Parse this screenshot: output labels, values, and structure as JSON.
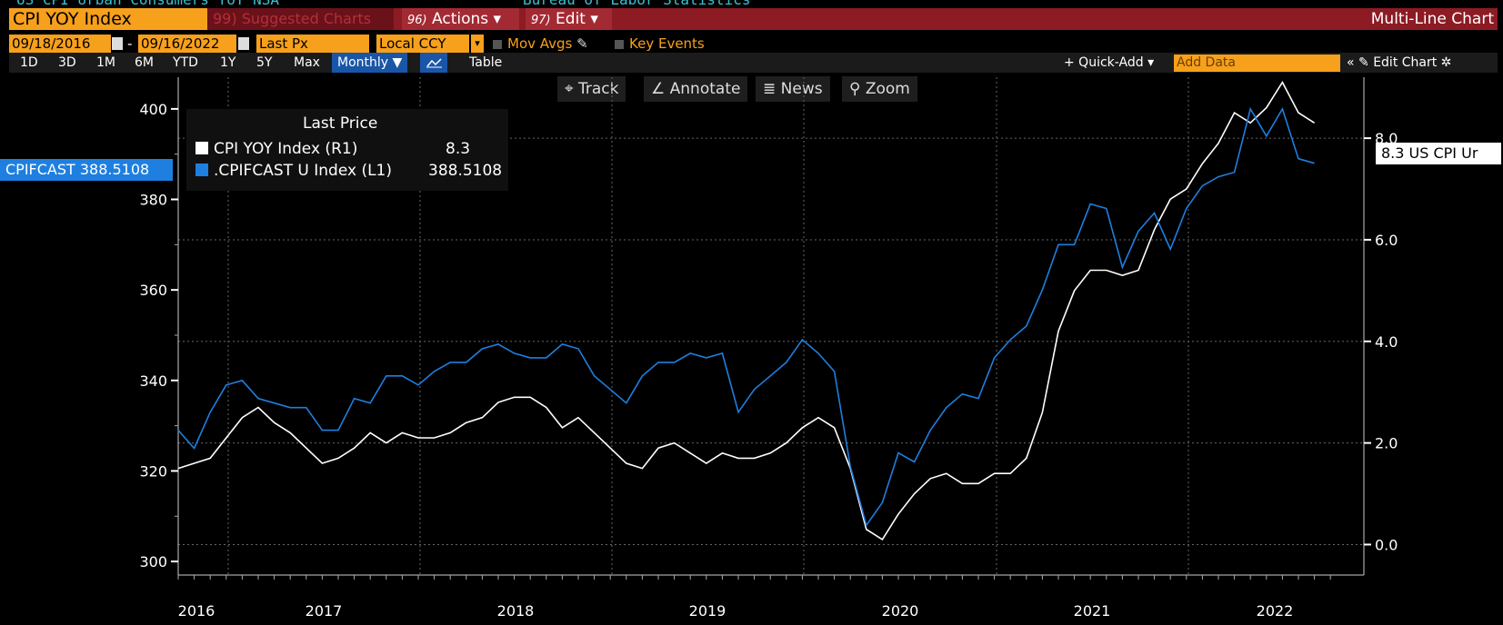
{
  "header": {
    "top_left_partial": "US CPI Urban Consumers YoY NSA",
    "top_right_partial": "Bureau of Labor Statistics",
    "ticker": "CPI YOY Index",
    "suggested": "99) Suggested Charts",
    "actions_num": "96)",
    "actions_label": "Actions ▾",
    "edit_num": "97)",
    "edit_label": "Edit ▾",
    "chart_type": "Multi-Line Chart"
  },
  "controls": {
    "start_date": "09/18/2016",
    "end_date": "09/16/2022",
    "dash": "-",
    "field": "Last Px",
    "currency": "Local CCY",
    "mov_avgs": "Mov Avgs",
    "key_events": "Key Events"
  },
  "ranges": {
    "items": [
      "1D",
      "3D",
      "1M",
      "6M",
      "YTD",
      "1Y",
      "5Y",
      "Max"
    ],
    "frequency": "Monthly ▼",
    "table": "Table",
    "quick_add": "+ Quick-Add ▾",
    "add_data_placeholder": "Add Data",
    "edit_chart": "« ✎ Edit Chart ✲"
  },
  "toolbar": {
    "track": "Track",
    "annotate": "Annotate",
    "news": "News",
    "zoom": "Zoom"
  },
  "legend": {
    "header": "Last Price",
    "rows": [
      {
        "label": "CPI YOY Index  (R1)",
        "value": "8.3",
        "color": "#ffffff"
      },
      {
        "label": ".CPIFCAST U Index  (L1)",
        "value": "388.5108",
        "color": "#1e7fe0"
      }
    ]
  },
  "tags": {
    "left": "CPIFCAST 388.5108",
    "right": "8.3 US CPI Ur"
  },
  "chart_data": {
    "type": "line",
    "x_labels": [
      "2016",
      "2017",
      "2018",
      "2019",
      "2020",
      "2021",
      "2022"
    ],
    "left_axis": {
      "ticks": [
        300,
        320,
        340,
        360,
        380,
        400
      ],
      "range": [
        297,
        407
      ]
    },
    "right_axis": {
      "ticks": [
        "0.0",
        "2.0",
        "4.0",
        "6.0",
        "8.0"
      ],
      "range": [
        -0.6,
        9.2
      ]
    },
    "grid": true,
    "series": [
      {
        "name": "CPI YOY Index (R1)",
        "axis": "right",
        "color": "#ffffff",
        "values": [
          1.5,
          1.6,
          1.7,
          2.1,
          2.5,
          2.7,
          2.4,
          2.2,
          1.9,
          1.6,
          1.7,
          1.9,
          2.2,
          2.0,
          2.2,
          2.1,
          2.1,
          2.2,
          2.4,
          2.5,
          2.8,
          2.9,
          2.9,
          2.7,
          2.3,
          2.5,
          2.2,
          1.9,
          1.6,
          1.5,
          1.9,
          2.0,
          1.8,
          1.6,
          1.8,
          1.7,
          1.7,
          1.8,
          2.0,
          2.3,
          2.5,
          2.3,
          1.5,
          0.3,
          0.1,
          0.6,
          1.0,
          1.3,
          1.4,
          1.2,
          1.2,
          1.4,
          1.4,
          1.7,
          2.6,
          4.2,
          5.0,
          5.4,
          5.4,
          5.3,
          5.4,
          6.2,
          6.8,
          7.0,
          7.5,
          7.9,
          8.5,
          8.3,
          8.6,
          9.1,
          8.5,
          8.3
        ]
      },
      {
        "name": ".CPIFCAST U Index (L1)",
        "axis": "left",
        "color": "#1e7fe0",
        "values": [
          329,
          325,
          333,
          339,
          340,
          336,
          335,
          334,
          334,
          329,
          329,
          336,
          335,
          341,
          341,
          339,
          342,
          344,
          344,
          347,
          348,
          346,
          345,
          345,
          348,
          347,
          341,
          338,
          335,
          341,
          344,
          344,
          346,
          345,
          346,
          333,
          338,
          341,
          344,
          349,
          346,
          342,
          321,
          308,
          313,
          324,
          322,
          329,
          334,
          337,
          336,
          345,
          349,
          352,
          360,
          370,
          370,
          379,
          378,
          365,
          373,
          377,
          369,
          378,
          383,
          385,
          386,
          400,
          394,
          400,
          389,
          388
        ]
      }
    ]
  }
}
